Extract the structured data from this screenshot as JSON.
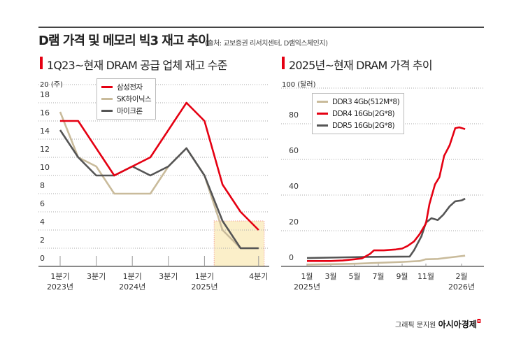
{
  "title": "D램 가격 및 메모리 빅3 재고 추이",
  "source": "(출처: 교보증권 리서치센터, D램익스체인지)",
  "credit": {
    "prefix": "그래픽 문지원",
    "brand": "아시아경제"
  },
  "colors": {
    "samsung": "#e50012",
    "sk": "#c9bb9b",
    "micron": "#555555",
    "highlight": "#fbefc9"
  },
  "chart_data": [
    {
      "type": "line",
      "title": "1Q23~현재 DRAM 공급 업체 재고 수준",
      "ylabel": "20 (주)",
      "ylim": [
        0,
        20
      ],
      "yticks": [
        0,
        2,
        4,
        6,
        8,
        10,
        12,
        14,
        16,
        18
      ],
      "categories": [
        "1Q23",
        "2Q23",
        "3Q23",
        "4Q23",
        "1Q24",
        "2Q24",
        "3Q24",
        "4Q24",
        "1Q25",
        "2Q25",
        "3Q25",
        "4Q25"
      ],
      "xtick_labels": [
        {
          "category": "1Q23",
          "line1": "1분기",
          "line2": "2023년"
        },
        {
          "category": "3Q23",
          "line1": "3분기",
          "line2": ""
        },
        {
          "category": "1Q24",
          "line1": "1분기",
          "line2": "2024년"
        },
        {
          "category": "3Q24",
          "line1": "3분기",
          "line2": ""
        },
        {
          "category": "1Q25",
          "line1": "1분기",
          "line2": "2025년"
        },
        {
          "category": "4Q25",
          "line1": "4분기",
          "line2": ""
        }
      ],
      "highlight_range": [
        "2Q25",
        "4Q25"
      ],
      "legend": "top-left",
      "grid": true,
      "series": [
        {
          "name": "삼성전자",
          "color": "#e50012",
          "values": [
            16,
            16,
            13,
            10,
            11,
            12,
            15,
            18,
            16,
            9,
            6,
            4
          ]
        },
        {
          "name": "SK하이닉스",
          "color": "#c9bb9b",
          "values": [
            17,
            12,
            11,
            8,
            8,
            8,
            11,
            13,
            10,
            4,
            2,
            2
          ]
        },
        {
          "name": "마이크론",
          "color": "#555555",
          "values": [
            15,
            12,
            10,
            10,
            11,
            10,
            11,
            13,
            10,
            5,
            2,
            2
          ]
        }
      ]
    },
    {
      "type": "line",
      "title": "2025년~현재 DRAM 가격 추이",
      "ylabel": "100 (달러)",
      "ylim": [
        0,
        100
      ],
      "yticks": [
        0,
        20,
        40,
        60,
        80
      ],
      "xtick_labels": [
        {
          "date": "2025-01-01",
          "line1": "1월",
          "line2": "2025년"
        },
        {
          "date": "2025-03-01",
          "line1": "3월",
          "line2": ""
        },
        {
          "date": "2025-05-01",
          "line1": "5월",
          "line2": ""
        },
        {
          "date": "2025-07-01",
          "line1": "7월",
          "line2": ""
        },
        {
          "date": "2025-09-01",
          "line1": "9월",
          "line2": ""
        },
        {
          "date": "2025-11-01",
          "line1": "11월",
          "line2": ""
        },
        {
          "date": "2026-02-01",
          "line1": "2월",
          "line2": "2026년"
        }
      ],
      "legend": "top-left",
      "grid": true,
      "series": [
        {
          "name": "DDR3 4Gb(512M*8)",
          "color": "#c9bb9b",
          "x": [
            "2025-01-01",
            "2025-05-01",
            "2025-07-01",
            "2025-09-01",
            "2025-10-15",
            "2025-11-01",
            "2025-12-01",
            "2026-01-01",
            "2026-02-10"
          ],
          "y": [
            1,
            1.5,
            2,
            2.5,
            3,
            4,
            4.2,
            5,
            6
          ]
        },
        {
          "name": "DDR4 16Gb(2G*8)",
          "color": "#e50012",
          "x": [
            "2025-01-01",
            "2025-03-01",
            "2025-04-01",
            "2025-05-01",
            "2025-05-20",
            "2025-06-10",
            "2025-06-20",
            "2025-07-15",
            "2025-08-15",
            "2025-09-01",
            "2025-09-15",
            "2025-10-01",
            "2025-10-15",
            "2025-11-01",
            "2025-11-10",
            "2025-11-24",
            "2025-12-05",
            "2025-12-17",
            "2026-01-01",
            "2026-01-15",
            "2026-01-25",
            "2026-02-10"
          ],
          "y": [
            3,
            3,
            3.3,
            4,
            4.5,
            7,
            9,
            9,
            9.5,
            10,
            11.5,
            14,
            18,
            24,
            35,
            46,
            50,
            62,
            68,
            77.5,
            78,
            77
          ]
        },
        {
          "name": "DDR5 16Gb(2G*8)",
          "color": "#555555",
          "x": [
            "2025-01-01",
            "2025-06-01",
            "2025-09-20",
            "2025-10-01",
            "2025-10-20",
            "2025-11-01",
            "2025-11-15",
            "2025-12-01",
            "2025-12-15",
            "2026-01-01",
            "2026-01-15",
            "2026-02-01",
            "2026-02-10"
          ],
          "y": [
            4.7,
            5.3,
            5.5,
            9,
            17,
            24.5,
            27,
            26,
            29,
            33.7,
            36.5,
            37,
            38
          ]
        }
      ]
    }
  ]
}
